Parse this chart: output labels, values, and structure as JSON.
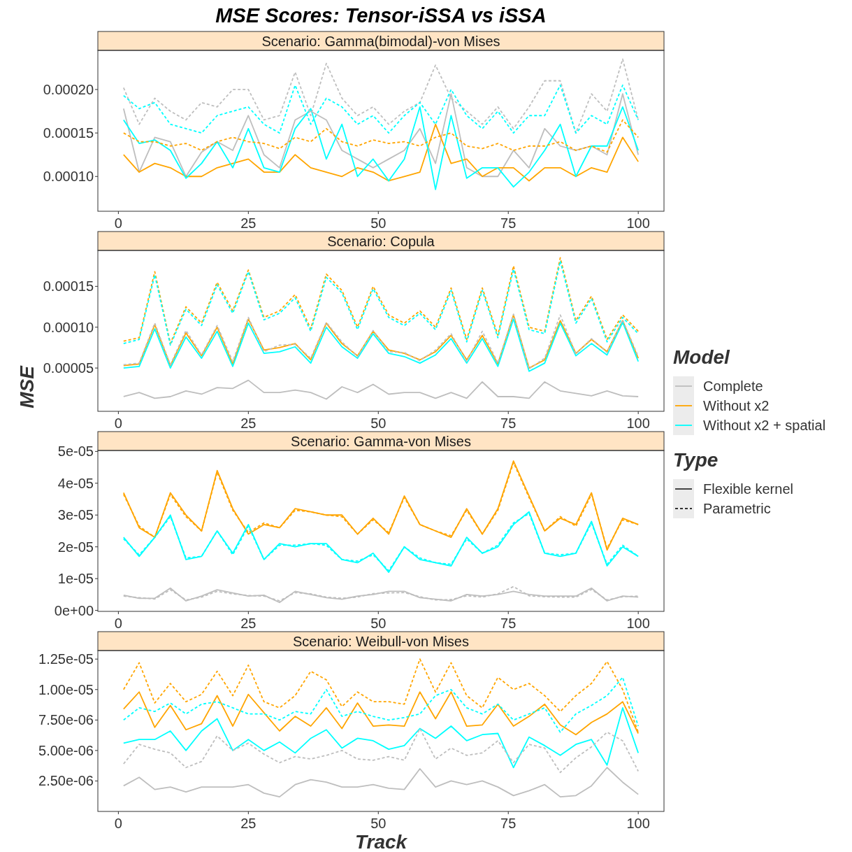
{
  "chart_data": [
    {
      "type": "line",
      "title": "MSE Scores: Tensor-iSSA vs iSSA",
      "subtitle": "Scenario: Gamma(bimodal)-von Mises",
      "legend": "right",
      "legend_title": "Model",
      "annotations": [
        "Type",
        "Flexible kernel",
        "Parametric"
      ],
      "xlim": [
        -3.95,
        104.95
      ],
      "xticks": [
        0,
        25,
        50,
        75,
        100
      ],
      "ylim": [
        6e-05,
        0.000245
      ],
      "yticks": [
        {
          "value": 0.0001,
          "label": "0.00010"
        },
        {
          "value": 0.00015,
          "label": "0.00015"
        },
        {
          "value": 0.0002,
          "label": "0.00020"
        }
      ],
      "series": [
        {
          "name": "Complete",
          "color": "#bebebe",
          "line_style": "solid",
          "x": [
            1,
            4,
            7,
            10,
            13,
            16,
            19,
            22,
            25,
            28,
            31,
            34,
            37,
            40,
            43,
            46,
            49,
            52,
            55,
            58,
            61,
            64,
            67,
            70,
            73,
            76,
            79,
            82,
            85,
            88,
            91,
            94,
            97,
            100
          ],
          "values": [
            0.000178,
            0.000105,
            0.000145,
            0.00014,
            0.0001,
            0.000128,
            0.00014,
            0.00013,
            0.00017,
            0.000125,
            0.00011,
            0.000165,
            0.000175,
            0.000165,
            0.00013,
            0.00012,
            0.00011,
            0.00012,
            0.00013,
            0.000155,
            0.000115,
            0.000195,
            0.00011,
            0.0001,
            0.0001,
            0.00013,
            0.00011,
            0.000155,
            0.000135,
            0.00013,
            0.000135,
            0.000125,
            0.000195,
            0.000125
          ]
        },
        {
          "name": "Without x2",
          "color": "#ffa500",
          "line_style": "solid",
          "x": [
            1,
            4,
            7,
            10,
            13,
            16,
            19,
            22,
            25,
            28,
            31,
            34,
            37,
            40,
            43,
            46,
            49,
            52,
            55,
            58,
            61,
            64,
            67,
            70,
            73,
            76,
            79,
            82,
            85,
            88,
            91,
            94,
            97,
            100
          ],
          "values": [
            0.000125,
            0.000105,
            0.000115,
            0.00011,
            0.0001,
            0.0001,
            0.00011,
            0.000115,
            0.00012,
            0.000105,
            0.000105,
            0.000125,
            0.00011,
            0.000105,
            0.0001,
            0.00011,
            0.000105,
            9.5e-05,
            0.0001,
            0.000105,
            0.00016,
            0.000115,
            0.00012,
            0.0001,
            0.00011,
            0.00011,
            9.5e-05,
            0.00011,
            0.00011,
            0.0001,
            0.00011,
            0.000105,
            0.000145,
            0.000117
          ]
        },
        {
          "name": "Without x2 + spatial",
          "color": "#00ffff",
          "line_style": "solid",
          "x": [
            1,
            4,
            7,
            10,
            13,
            16,
            19,
            22,
            25,
            28,
            31,
            34,
            37,
            40,
            43,
            46,
            49,
            52,
            55,
            58,
            61,
            64,
            67,
            70,
            73,
            76,
            79,
            82,
            85,
            88,
            91,
            94,
            97,
            100
          ],
          "values": [
            0.000165,
            0.000138,
            0.000142,
            0.00013,
            9.8e-05,
            0.000115,
            0.00014,
            0.00011,
            0.000155,
            0.00011,
            0.000105,
            0.000155,
            0.000178,
            0.00012,
            0.00016,
            0.0001,
            0.00012,
            9.5e-05,
            0.00012,
            0.00018,
            8.5e-05,
            0.00017,
            9.8e-05,
            0.00011,
            0.00011,
            8.8e-05,
            0.000105,
            0.00013,
            0.00016,
            0.0001,
            0.000135,
            0.000135,
            0.00018,
            0.00013
          ]
        },
        {
          "color": "#bebebe",
          "line_style": "dashed",
          "x": [
            1,
            4,
            7,
            10,
            13,
            16,
            19,
            22,
            25,
            28,
            31,
            34,
            37,
            40,
            43,
            46,
            49,
            52,
            55,
            58,
            61,
            64,
            67,
            70,
            73,
            76,
            79,
            82,
            85,
            88,
            91,
            94,
            97,
            100
          ],
          "values": [
            0.000202,
            0.00016,
            0.00019,
            0.000175,
            0.000165,
            0.000185,
            0.00018,
            0.0002,
            0.0002,
            0.000165,
            0.00017,
            0.00022,
            0.00017,
            0.00023,
            0.00019,
            0.00017,
            0.00018,
            0.00016,
            0.000175,
            0.000185,
            0.000228,
            0.00019,
            0.000175,
            0.00016,
            0.00018,
            0.000155,
            0.00018,
            0.00021,
            0.00021,
            0.00015,
            0.000195,
            0.000175,
            0.000235,
            0.000165
          ]
        },
        {
          "color": "#ffa500",
          "line_style": "dashed",
          "x": [
            1,
            4,
            7,
            10,
            13,
            16,
            19,
            22,
            25,
            28,
            31,
            34,
            37,
            40,
            43,
            46,
            49,
            52,
            55,
            58,
            61,
            64,
            67,
            70,
            73,
            76,
            79,
            82,
            85,
            88,
            91,
            94,
            97,
            100
          ],
          "values": [
            0.00015,
            0.00014,
            0.00014,
            0.000135,
            0.000138,
            0.00013,
            0.00014,
            0.000145,
            0.00014,
            0.000138,
            0.000132,
            0.000145,
            0.00014,
            0.000155,
            0.00014,
            0.000135,
            0.000142,
            0.000138,
            0.00014,
            0.000135,
            0.000145,
            0.00015,
            0.000135,
            0.000132,
            0.000138,
            0.00013,
            0.000135,
            0.000135,
            0.00014,
            0.00013,
            0.000135,
            0.000128,
            0.000165,
            0.000145
          ]
        },
        {
          "color": "#00ffff",
          "line_style": "dashed",
          "x": [
            1,
            4,
            7,
            10,
            13,
            16,
            19,
            22,
            25,
            28,
            31,
            34,
            37,
            40,
            43,
            46,
            49,
            52,
            55,
            58,
            61,
            64,
            67,
            70,
            73,
            76,
            79,
            82,
            85,
            88,
            91,
            94,
            97,
            100
          ],
          "values": [
            0.000193,
            0.000178,
            0.000185,
            0.00016,
            0.000155,
            0.00015,
            0.00017,
            0.000175,
            0.00018,
            0.00016,
            0.00015,
            0.000205,
            0.00016,
            0.00019,
            0.00018,
            0.00016,
            0.00017,
            0.00015,
            0.00017,
            0.000185,
            0.00016,
            0.0002,
            0.00017,
            0.000155,
            0.000175,
            0.00015,
            0.00017,
            0.00017,
            0.000205,
            0.00015,
            0.00017,
            0.00016,
            0.000205,
            0.000165
          ]
        }
      ]
    },
    {
      "type": "line",
      "subtitle": "Scenario: Copula",
      "ylabel": "MSE",
      "xlim": [
        -3.95,
        104.95
      ],
      "xticks": [
        0,
        25,
        50,
        75,
        100
      ],
      "ylim": [
        -3e-06,
        0.000194
      ],
      "yticks": [
        {
          "value": 5e-05,
          "label": "0.00005"
        },
        {
          "value": 0.0001,
          "label": "0.00010"
        },
        {
          "value": 0.00015,
          "label": "0.00015"
        }
      ],
      "series": [
        {
          "color": "#bebebe",
          "line_style": "solid",
          "x": [
            1,
            4,
            7,
            10,
            13,
            16,
            19,
            22,
            25,
            28,
            31,
            34,
            37,
            40,
            43,
            46,
            49,
            52,
            55,
            58,
            61,
            64,
            67,
            70,
            73,
            76,
            79,
            82,
            85,
            88,
            91,
            94,
            97,
            100
          ],
          "values": [
            1.5e-05,
            2e-05,
            1.3e-05,
            1.5e-05,
            2.2e-05,
            1.8e-05,
            2.6e-05,
            2.5e-05,
            3.5e-05,
            2e-05,
            2e-05,
            2.3e-05,
            2e-05,
            1.2e-05,
            2.7e-05,
            2e-05,
            3e-05,
            1.8e-05,
            2e-05,
            2e-05,
            1.3e-05,
            2e-05,
            1.3e-05,
            3.3e-05,
            1.5e-05,
            1.5e-05,
            1.3e-05,
            3.3e-05,
            2.2e-05,
            1.9e-05,
            1.6e-05,
            2.2e-05,
            1.6e-05,
            1.5e-05
          ]
        },
        {
          "color": "#ffa500",
          "line_style": "solid",
          "x": [
            1,
            4,
            7,
            10,
            13,
            16,
            19,
            22,
            25,
            28,
            31,
            34,
            37,
            40,
            43,
            46,
            49,
            52,
            55,
            58,
            61,
            64,
            67,
            70,
            73,
            76,
            79,
            82,
            85,
            88,
            91,
            94,
            97,
            100
          ],
          "values": [
            5.3e-05,
            5.5e-05,
            0.000103,
            5.3e-05,
            9.3e-05,
            6.5e-05,
            0.0001,
            5.5e-05,
            0.00011,
            7.2e-05,
            7.5e-05,
            8e-05,
            6e-05,
            0.000105,
            8e-05,
            6.5e-05,
            9.5e-05,
            7.2e-05,
            6.8e-05,
            6e-05,
            7e-05,
            9e-05,
            6e-05,
            9e-05,
            5.5e-05,
            0.000115,
            5e-05,
            6e-05,
            0.000108,
            6.8e-05,
            8.5e-05,
            7e-05,
            0.000108,
            6.2e-05
          ]
        },
        {
          "color": "#00ffff",
          "line_style": "solid",
          "x": [
            1,
            4,
            7,
            10,
            13,
            16,
            19,
            22,
            25,
            28,
            31,
            34,
            37,
            40,
            43,
            46,
            49,
            52,
            55,
            58,
            61,
            64,
            67,
            70,
            73,
            76,
            79,
            82,
            85,
            88,
            91,
            94,
            97,
            100
          ],
          "values": [
            5e-05,
            5.2e-05,
            9.8e-05,
            5e-05,
            8.8e-05,
            6.2e-05,
            9.5e-05,
            5.2e-05,
            0.000105,
            6.8e-05,
            7e-05,
            7.6e-05,
            5.6e-05,
            0.0001,
            7.6e-05,
            6.2e-05,
            9.2e-05,
            6.8e-05,
            6.4e-05,
            5.6e-05,
            6.6e-05,
            8.6e-05,
            5.6e-05,
            8.6e-05,
            5.2e-05,
            0.00011,
            4.6e-05,
            5.6e-05,
            0.000105,
            6.5e-05,
            8e-05,
            6.6e-05,
            0.000106,
            5.8e-05
          ]
        },
        {
          "color": "#bebebe",
          "line_style": "dashed",
          "x": [
            1,
            4,
            7,
            10,
            13,
            16,
            19,
            22,
            25,
            28,
            31,
            34,
            37,
            40,
            43,
            46,
            49,
            52,
            55,
            58,
            61,
            64,
            67,
            70,
            73,
            76,
            79,
            82,
            85,
            88,
            91,
            94,
            97,
            100
          ],
          "values": [
            5.4e-05,
            5.6e-05,
            0.000105,
            5.4e-05,
            9.6e-05,
            6.6e-05,
            0.000102,
            5.8e-05,
            0.000112,
            7e-05,
            7.8e-05,
            7.9e-05,
            6.2e-05,
            0.000106,
            8.2e-05,
            6.4e-05,
            9.6e-05,
            7e-05,
            6.9e-05,
            5.9e-05,
            7.2e-05,
            9.2e-05,
            5.8e-05,
            9.5e-05,
            5.6e-05,
            0.000116,
            4.9e-05,
            6.2e-05,
            0.000115,
            6.7e-05,
            8.6e-05,
            6.9e-05,
            0.000109,
            6.4e-05
          ]
        },
        {
          "color": "#ffa500",
          "line_style": "dashed",
          "x": [
            1,
            4,
            7,
            10,
            13,
            16,
            19,
            22,
            25,
            28,
            31,
            34,
            37,
            40,
            43,
            46,
            49,
            52,
            55,
            58,
            61,
            64,
            67,
            70,
            73,
            76,
            79,
            82,
            85,
            88,
            91,
            94,
            97,
            100
          ],
          "values": [
            8.3e-05,
            8.7e-05,
            0.000168,
            8e-05,
            0.000125,
            0.000105,
            0.000155,
            0.00012,
            0.00017,
            0.000112,
            0.00012,
            0.00014,
            9.8e-05,
            0.000165,
            0.000145,
            0.0001,
            0.00015,
            0.000115,
            0.000105,
            0.00012,
            0.0001,
            0.000148,
            8.5e-05,
            0.000148,
            9e-05,
            0.000175,
            0.0001,
            9.5e-05,
            0.000185,
            0.000108,
            0.000138,
            8.5e-05,
            0.000115,
            9.5e-05
          ]
        },
        {
          "color": "#00ffff",
          "line_style": "dashed",
          "x": [
            1,
            4,
            7,
            10,
            13,
            16,
            19,
            22,
            25,
            28,
            31,
            34,
            37,
            40,
            43,
            46,
            49,
            52,
            55,
            58,
            61,
            64,
            67,
            70,
            73,
            76,
            79,
            82,
            85,
            88,
            91,
            94,
            97,
            100
          ],
          "values": [
            8e-05,
            8.5e-05,
            0.000164,
            7.8e-05,
            0.000122,
            0.000102,
            0.000152,
            0.000117,
            0.000168,
            0.000109,
            0.000117,
            0.000136,
            9.5e-05,
            0.000161,
            0.000142,
            9.7e-05,
            0.000147,
            0.000112,
            0.000102,
            0.000117,
            9.7e-05,
            0.000145,
            8.2e-05,
            0.000145,
            8.7e-05,
            0.000171,
            9.7e-05,
            9.2e-05,
            0.000181,
            0.000105,
            0.000135,
            8.2e-05,
            0.000112,
            9.2e-05
          ]
        }
      ]
    },
    {
      "type": "line",
      "subtitle": "Scenario: Gamma-von Mises",
      "xlim": [
        -3.95,
        104.95
      ],
      "xticks": [
        0,
        25,
        50,
        75,
        100
      ],
      "ylim": [
        -3e-07,
        5.03e-05
      ],
      "yticks": [
        {
          "value": 0,
          "label": "0e+00"
        },
        {
          "value": 1e-05,
          "label": "1e-05"
        },
        {
          "value": 2e-05,
          "label": "2e-05"
        },
        {
          "value": 3e-05,
          "label": "3e-05"
        },
        {
          "value": 4e-05,
          "label": "4e-05"
        },
        {
          "value": 5e-05,
          "label": "5e-05"
        }
      ],
      "series": [
        {
          "color": "#bebebe",
          "line_style": "solid",
          "x": [
            1,
            4,
            7,
            10,
            13,
            16,
            19,
            22,
            25,
            28,
            31,
            34,
            37,
            40,
            43,
            46,
            49,
            52,
            55,
            58,
            61,
            64,
            67,
            70,
            73,
            76,
            79,
            82,
            85,
            88,
            91,
            94,
            97,
            100
          ],
          "values": [
            4.8e-06,
            3.8e-06,
            3.8e-06,
            7e-06,
            3e-06,
            4.5e-06,
            6.5e-06,
            5.5e-06,
            4.5e-06,
            4.8e-06,
            2.5e-06,
            6e-06,
            5e-06,
            4e-06,
            3.5e-06,
            4.5e-06,
            5e-06,
            6e-06,
            6e-06,
            4e-06,
            3.5e-06,
            3e-06,
            5e-06,
            4.5e-06,
            5e-06,
            6e-06,
            5e-06,
            4.5e-06,
            4.5e-06,
            4.5e-06,
            7e-06,
            3e-06,
            4.5e-06,
            4.2e-06
          ]
        },
        {
          "color": "#ffa500",
          "line_style": "solid",
          "x": [
            1,
            4,
            7,
            10,
            13,
            16,
            19,
            22,
            25,
            28,
            31,
            34,
            37,
            40,
            43,
            46,
            49,
            52,
            55,
            58,
            61,
            64,
            67,
            70,
            73,
            76,
            79,
            82,
            85,
            88,
            91,
            94,
            97,
            100
          ],
          "values": [
            3.7e-05,
            2.6e-05,
            2.3e-05,
            3.7e-05,
            3e-05,
            2.5e-05,
            4.4e-05,
            3.2e-05,
            2.4e-05,
            2.7e-05,
            2.6e-05,
            3.2e-05,
            3.1e-05,
            3e-05,
            3e-05,
            2.4e-05,
            2.9e-05,
            2.4e-05,
            3.6e-05,
            2.7e-05,
            2.5e-05,
            2.3e-05,
            3.2e-05,
            2.4e-05,
            3.2e-05,
            4.7e-05,
            3.6e-05,
            2.5e-05,
            2.9e-05,
            2.7e-05,
            3.7e-05,
            1.9e-05,
            2.9e-05,
            2.7e-05
          ]
        },
        {
          "color": "#00ffff",
          "line_style": "solid",
          "x": [
            1,
            4,
            7,
            10,
            13,
            16,
            19,
            22,
            25,
            28,
            31,
            34,
            37,
            40,
            43,
            46,
            49,
            52,
            55,
            58,
            61,
            64,
            67,
            70,
            73,
            76,
            79,
            82,
            85,
            88,
            91,
            94,
            97,
            100
          ],
          "values": [
            2.3e-05,
            1.7e-05,
            2.3e-05,
            3e-05,
            1.6e-05,
            1.7e-05,
            2.5e-05,
            1.8e-05,
            2.7e-05,
            1.6e-05,
            2.1e-05,
            2e-05,
            2.1e-05,
            2.1e-05,
            1.6e-05,
            1.5e-05,
            1.8e-05,
            1.2e-05,
            2e-05,
            1.6e-05,
            1.5e-05,
            1.4e-05,
            2.3e-05,
            1.8e-05,
            2e-05,
            2.7e-05,
            3.1e-05,
            1.8e-05,
            1.7e-05,
            1.8e-05,
            2.8e-05,
            1.4e-05,
            2e-05,
            1.7e-05
          ]
        },
        {
          "color": "#bebebe",
          "line_style": "dashed",
          "x": [
            1,
            4,
            7,
            10,
            13,
            16,
            19,
            22,
            25,
            28,
            31,
            34,
            37,
            40,
            43,
            46,
            49,
            52,
            55,
            58,
            61,
            64,
            67,
            70,
            73,
            76,
            79,
            82,
            85,
            88,
            91,
            94,
            97,
            100
          ],
          "values": [
            4.5e-06,
            4e-06,
            3.6e-06,
            6.5e-06,
            3.3e-06,
            4.2e-06,
            6e-06,
            5.2e-06,
            4.7e-06,
            4.5e-06,
            3e-06,
            5.6e-06,
            5.2e-06,
            4.2e-06,
            3.8e-06,
            4.2e-06,
            5.3e-06,
            5.5e-06,
            5.6e-06,
            4.3e-06,
            3.3e-06,
            3.4e-06,
            4.6e-06,
            4.2e-06,
            5.2e-06,
            7.5e-06,
            4.6e-06,
            4.3e-06,
            4.2e-06,
            4.2e-06,
            6.6e-06,
            3.3e-06,
            4.3e-06,
            4.5e-06
          ]
        },
        {
          "color": "#ffa500",
          "line_style": "dashed",
          "x": [
            1,
            4,
            7,
            10,
            13,
            16,
            19,
            22,
            25,
            28,
            31,
            34,
            37,
            40,
            43,
            46,
            49,
            52,
            55,
            58,
            61,
            64,
            67,
            70,
            73,
            76,
            79,
            82,
            85,
            88,
            91,
            94,
            97,
            100
          ],
          "values": [
            3.65e-05,
            2.65e-05,
            2.3e-05,
            3.65e-05,
            2.95e-05,
            2.5e-05,
            4.35e-05,
            3.15e-05,
            2.45e-05,
            2.75e-05,
            2.6e-05,
            3.15e-05,
            3.1e-05,
            3e-05,
            2.95e-05,
            2.4e-05,
            2.85e-05,
            2.45e-05,
            3.55e-05,
            2.7e-05,
            2.5e-05,
            2.35e-05,
            3.15e-05,
            2.4e-05,
            3.15e-05,
            4.65e-05,
            3.55e-05,
            2.5e-05,
            2.95e-05,
            2.65e-05,
            3.65e-05,
            1.95e-05,
            2.85e-05,
            2.7e-05
          ]
        },
        {
          "color": "#00ffff",
          "line_style": "dashed",
          "x": [
            1,
            4,
            7,
            10,
            13,
            16,
            19,
            22,
            25,
            28,
            31,
            34,
            37,
            40,
            43,
            46,
            49,
            52,
            55,
            58,
            61,
            64,
            67,
            70,
            73,
            76,
            79,
            82,
            85,
            88,
            91,
            94,
            97,
            100
          ],
          "values": [
            2.25e-05,
            1.75e-05,
            2.3e-05,
            2.95e-05,
            1.65e-05,
            1.7e-05,
            2.5e-05,
            1.75e-05,
            2.65e-05,
            1.6e-05,
            2.05e-05,
            2.05e-05,
            2.1e-05,
            2.05e-05,
            1.6e-05,
            1.55e-05,
            1.75e-05,
            1.25e-05,
            2e-05,
            1.65e-05,
            1.5e-05,
            1.45e-05,
            2.25e-05,
            1.8e-05,
            2.05e-05,
            2.75e-05,
            3.05e-05,
            1.8e-05,
            1.75e-05,
            1.8e-05,
            2.75e-05,
            1.45e-05,
            2.05e-05,
            1.7e-05
          ]
        }
      ]
    },
    {
      "type": "line",
      "subtitle": "Scenario: Weibull-von Mises",
      "xlabel": "Track",
      "xlim": [
        -3.95,
        104.95
      ],
      "xticks": [
        0,
        25,
        50,
        75,
        100
      ],
      "ylim": [
        0,
        1.32e-05
      ],
      "yticks": [
        {
          "value": 2.5e-06,
          "label": "2.50e-06"
        },
        {
          "value": 5e-06,
          "label": "5.00e-06"
        },
        {
          "value": 7.5e-06,
          "label": "7.50e-06"
        },
        {
          "value": 1e-05,
          "label": "1.00e-05"
        },
        {
          "value": 1.25e-05,
          "label": "1.25e-05"
        }
      ],
      "series": [
        {
          "color": "#bebebe",
          "line_style": "solid",
          "x": [
            1,
            4,
            7,
            10,
            13,
            16,
            19,
            22,
            25,
            28,
            31,
            34,
            37,
            40,
            43,
            46,
            49,
            52,
            55,
            58,
            61,
            64,
            67,
            70,
            73,
            76,
            79,
            82,
            85,
            88,
            91,
            94,
            97,
            100
          ],
          "values": [
            2.1e-06,
            2.8e-06,
            1.8e-06,
            2e-06,
            1.6e-06,
            2e-06,
            2e-06,
            2e-06,
            2.2e-06,
            1.5e-06,
            1.2e-06,
            2.2e-06,
            2.6e-06,
            2.4e-06,
            2e-06,
            2e-06,
            2.2e-06,
            1.9e-06,
            1.8e-06,
            3.5e-06,
            2e-06,
            2.5e-06,
            2.2e-06,
            2.5e-06,
            2e-06,
            1.3e-06,
            1.7e-06,
            2.2e-06,
            1.2e-06,
            1.3e-06,
            2.1e-06,
            3.6e-06,
            2.4e-06,
            1.4e-06
          ]
        },
        {
          "color": "#ffa500",
          "line_style": "solid",
          "x": [
            1,
            4,
            7,
            10,
            13,
            16,
            19,
            22,
            25,
            28,
            31,
            34,
            37,
            40,
            43,
            46,
            49,
            52,
            55,
            58,
            61,
            64,
            67,
            70,
            73,
            76,
            79,
            82,
            85,
            88,
            91,
            94,
            97,
            100
          ],
          "values": [
            8.4e-06,
            9.8e-06,
            6.9e-06,
            8.7e-06,
            6.7e-06,
            7.2e-06,
            9.5e-06,
            7e-06,
            9.6e-06,
            8.1e-06,
            6.6e-06,
            7.8e-06,
            7e-06,
            8.5e-06,
            6.8e-06,
            8.9e-06,
            7e-06,
            7.1e-06,
            7e-06,
            9.8e-06,
            7.6e-06,
            9.8e-06,
            7e-06,
            7.1e-06,
            8.8e-06,
            7e-06,
            7.8e-06,
            8.8e-06,
            7.1e-06,
            6.3e-06,
            7.3e-06,
            8e-06,
            9e-06,
            6.4e-06
          ]
        },
        {
          "color": "#00ffff",
          "line_style": "solid",
          "x": [
            1,
            4,
            7,
            10,
            13,
            16,
            19,
            22,
            25,
            28,
            31,
            34,
            37,
            40,
            43,
            46,
            49,
            52,
            55,
            58,
            61,
            64,
            67,
            70,
            73,
            76,
            79,
            82,
            85,
            88,
            91,
            94,
            97,
            100
          ],
          "values": [
            5.6e-06,
            5.9e-06,
            5.9e-06,
            6.6e-06,
            5e-06,
            6.6e-06,
            7.6e-06,
            5e-06,
            5.9e-06,
            5e-06,
            5.7e-06,
            4.8e-06,
            6e-06,
            6.7e-06,
            5.2e-06,
            6e-06,
            5.8e-06,
            5.1e-06,
            5.4e-06,
            6.8e-06,
            6e-06,
            7e-06,
            5.8e-06,
            6.3e-06,
            6.4e-06,
            3.6e-06,
            6.1e-06,
            5.4e-06,
            4.6e-06,
            5.5e-06,
            5.9e-06,
            3.8e-06,
            8.5e-06,
            4.8e-06
          ]
        },
        {
          "color": "#bebebe",
          "line_style": "dashed",
          "x": [
            1,
            4,
            7,
            10,
            13,
            16,
            19,
            22,
            25,
            28,
            31,
            34,
            37,
            40,
            43,
            46,
            49,
            52,
            55,
            58,
            61,
            64,
            67,
            70,
            73,
            76,
            79,
            82,
            85,
            88,
            91,
            94,
            97,
            100
          ],
          "values": [
            3.9e-06,
            5.5e-06,
            5.1e-06,
            4.8e-06,
            3.6e-06,
            4.1e-06,
            6.2e-06,
            5e-06,
            5.6e-06,
            4.7e-06,
            4e-06,
            4.5e-06,
            4.3e-06,
            4.6e-06,
            5e-06,
            4.3e-06,
            4.2e-06,
            4.5e-06,
            4.2e-06,
            6.8e-06,
            4.3e-06,
            5.2e-06,
            4.6e-06,
            4.8e-06,
            5.8e-06,
            4e-06,
            5.5e-06,
            5.2e-06,
            3.2e-06,
            4.4e-06,
            5.3e-06,
            6.5e-06,
            5.8e-06,
            3.3e-06
          ]
        },
        {
          "color": "#ffa500",
          "line_style": "dashed",
          "x": [
            1,
            4,
            7,
            10,
            13,
            16,
            19,
            22,
            25,
            28,
            31,
            34,
            37,
            40,
            43,
            46,
            49,
            52,
            55,
            58,
            61,
            64,
            67,
            70,
            73,
            76,
            79,
            82,
            85,
            88,
            91,
            94,
            97,
            100
          ],
          "values": [
            1e-05,
            1.22e-05,
            8.9e-06,
            1.05e-05,
            9e-06,
            9.6e-06,
            1.15e-05,
            9.5e-06,
            1.2e-05,
            9e-06,
            8.5e-06,
            9.5e-06,
            1.15e-05,
            1.08e-05,
            8.6e-06,
            9.8e-06,
            9e-06,
            9e-06,
            8.8e-06,
            1.25e-05,
            9.8e-06,
            1.22e-05,
            9.5e-06,
            8.5e-06,
            1.1e-05,
            1e-05,
            1.05e-05,
            9.5e-06,
            8.2e-06,
            9.5e-06,
            1.05e-05,
            1.23e-05,
            1e-05,
            6.5e-06
          ]
        },
        {
          "color": "#00ffff",
          "line_style": "dashed",
          "x": [
            1,
            4,
            7,
            10,
            13,
            16,
            19,
            22,
            25,
            28,
            31,
            34,
            37,
            40,
            43,
            46,
            49,
            52,
            55,
            58,
            61,
            64,
            67,
            70,
            73,
            76,
            79,
            82,
            85,
            88,
            91,
            94,
            97,
            100
          ],
          "values": [
            7.5e-06,
            8.5e-06,
            8.2e-06,
            8.9e-06,
            8e-06,
            8.8e-06,
            9e-06,
            8.5e-06,
            8e-06,
            8e-06,
            7.5e-06,
            8.2e-06,
            8e-06,
            1e-05,
            7.8e-06,
            8.2e-06,
            7.8e-06,
            7.5e-06,
            7.7e-06,
            8e-06,
            9.5e-06,
            1e-05,
            8.5e-06,
            8e-06,
            8.8e-06,
            7.5e-06,
            8e-06,
            8.5e-06,
            6.5e-06,
            8e-06,
            8.7e-06,
            9.5e-06,
            1.1e-05,
            7e-06
          ]
        }
      ]
    }
  ]
}
